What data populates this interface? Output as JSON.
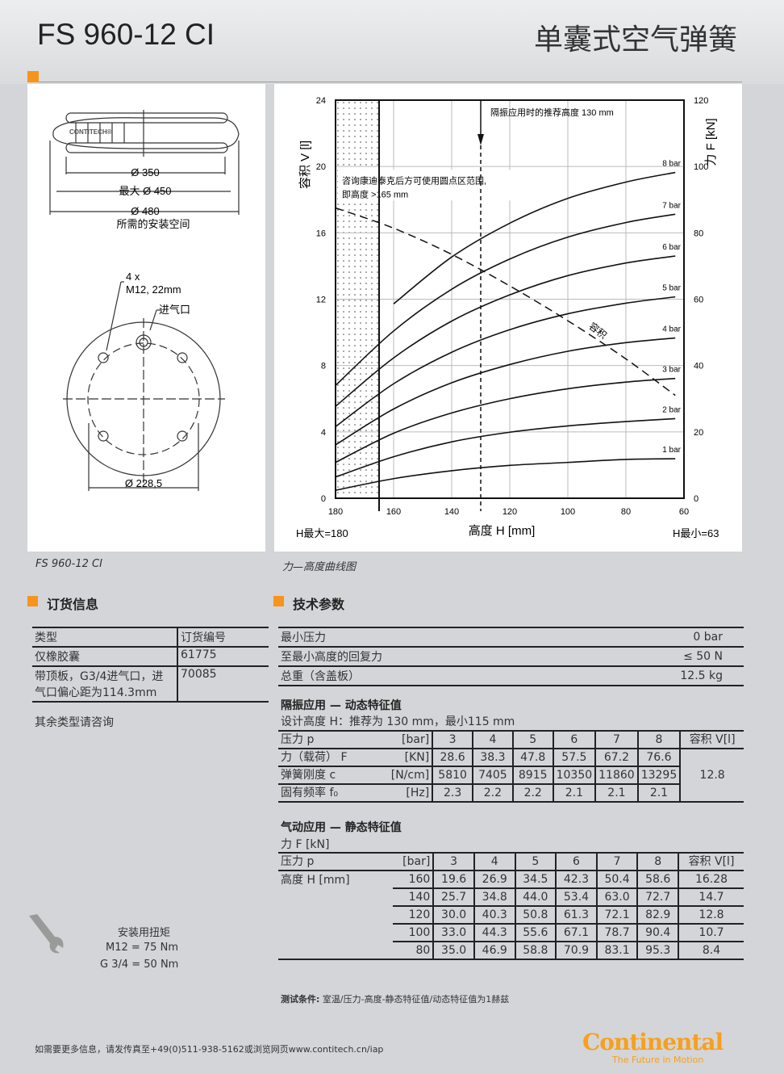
{
  "header": {
    "model": "FS 960-12 CI",
    "product_type": "单囊式空气弹簧"
  },
  "drawing": {
    "d350": "Ø 350",
    "d450": "最大  Ø 450",
    "d480": "Ø 480",
    "install_space": "所需的安装空间",
    "bolts": "4 x",
    "bolt_spec": "M12, 22mm",
    "air_inlet": "进气口",
    "d228": "Ø 228,5",
    "logo_text": "CONTITECH"
  },
  "captions": {
    "drawing": "FS 960-12 CI",
    "chart": "力—高度曲线图"
  },
  "chart_data": {
    "type": "line",
    "xlabel": "高度 H [mm]",
    "ylabel_left": "容积  V [l]",
    "ylabel_right": "力  F [kN]",
    "xlim": [
      180,
      60
    ],
    "ylim_left": [
      0,
      24
    ],
    "ylim_right": [
      0,
      120
    ],
    "x_ticks": [
      180,
      160,
      140,
      120,
      100,
      80,
      60
    ],
    "y_left_ticks": [
      0,
      4,
      8,
      12,
      16,
      20,
      24
    ],
    "y_right_ticks": [
      0,
      20,
      40,
      60,
      80,
      100,
      120
    ],
    "grid": true,
    "h_max_label": "H最大=180",
    "h_min_label": "H最小=63",
    "annotation_recommended": "隔振应用时的推荐高度  130 mm",
    "annotation_dotted_1": "咨询康迪泰克后方可使用圆点区范围,",
    "annotation_dotted_2": "即高度  >165 mm",
    "dotted_region": [
      180,
      165
    ],
    "recommended_height": 130,
    "volume_label": "容积",
    "x": [
      180,
      160,
      140,
      120,
      100,
      80,
      63
    ],
    "series": [
      {
        "name": "8 bar",
        "values": [
          null,
          58.6,
          72.7,
          82.9,
          90.4,
          95.3,
          98.2
        ]
      },
      {
        "name": "7 bar",
        "values": [
          34,
          50.4,
          63.0,
          72.1,
          78.7,
          83.1,
          85.6
        ]
      },
      {
        "name": "6 bar",
        "values": [
          27.7,
          42.3,
          53.4,
          61.3,
          67.1,
          70.9,
          73
        ]
      },
      {
        "name": "5 bar",
        "values": [
          21.6,
          34.5,
          44.0,
          50.8,
          55.6,
          58.8,
          60.7
        ]
      },
      {
        "name": "4 bar",
        "values": [
          16.1,
          26.9,
          34.8,
          40.3,
          44.3,
          46.9,
          48.3
        ]
      },
      {
        "name": "3 bar",
        "values": [
          10.8,
          19.6,
          25.7,
          30.0,
          33.0,
          35.0,
          36.1
        ]
      },
      {
        "name": "2 bar",
        "values": [
          6.4,
          12.5,
          17,
          19.9,
          21.8,
          23.1,
          24
        ]
      },
      {
        "name": "1 bar",
        "values": [
          2.4,
          5.9,
          8.3,
          9.9,
          10.8,
          11.7,
          11.9
        ]
      }
    ],
    "volume_series": {
      "name": "容积",
      "axis": "left",
      "values": [
        17.5,
        16.28,
        14.7,
        12.8,
        10.7,
        8.4,
        6.2
      ]
    }
  },
  "order": {
    "title": "订货信息",
    "headers": [
      "类型",
      "订货编号"
    ],
    "rows": [
      [
        "仅橡胶囊",
        "61775"
      ],
      [
        "带顶板，G3/4进气口，进气口偏心距为114.3mm",
        "70085"
      ]
    ],
    "note": "其余类型请咨询"
  },
  "tech": {
    "title": "技术参数",
    "rows": [
      [
        "最小压力",
        "0 bar"
      ],
      [
        "至最小高度的回复力",
        "≤ 50 N"
      ],
      [
        "总重（含盖板）",
        "12.5 kg"
      ]
    ]
  },
  "dynamic": {
    "title": "隔振应用 — 动态特征值",
    "subtitle": "设计高度 H：推荐为 130 mm，最小115 mm",
    "header": [
      "压力 p",
      "[bar]",
      "3",
      "4",
      "5",
      "6",
      "7",
      "8",
      "容积 V[l]"
    ],
    "rows": [
      [
        "力（载荷） F",
        "[KN]",
        "28.6",
        "38.3",
        "47.8",
        "57.5",
        "67.2",
        "76.6"
      ],
      [
        "弹簧刚度 c",
        "[N/cm]",
        "5810",
        "7405",
        "8915",
        "10350",
        "11860",
        "13295"
      ],
      [
        "固有频率  f₀",
        "[Hz]",
        "2.3",
        "2.2",
        "2.2",
        "2.1",
        "2.1",
        "2.1"
      ]
    ],
    "volume": "12.8"
  },
  "static": {
    "title": "气动应用 — 静态特征值",
    "subtitle": "力 F [kN]",
    "header": [
      "压力 p",
      "[bar]",
      "3",
      "4",
      "5",
      "6",
      "7",
      "8",
      "容积 V[l]"
    ],
    "row_label": "高度 H [mm]",
    "rows": [
      [
        "160",
        "19.6",
        "26.9",
        "34.5",
        "42.3",
        "50.4",
        "58.6",
        "16.28"
      ],
      [
        "140",
        "25.7",
        "34.8",
        "44.0",
        "53.4",
        "63.0",
        "72.7",
        "14.7"
      ],
      [
        "120",
        "30.0",
        "40.3",
        "50.8",
        "61.3",
        "72.1",
        "82.9",
        "12.8"
      ],
      [
        "100",
        "33.0",
        "44.3",
        "55.6",
        "67.1",
        "78.7",
        "90.4",
        "10.7"
      ],
      [
        "80",
        "35.0",
        "46.9",
        "58.8",
        "70.9",
        "83.1",
        "95.3",
        "8.4"
      ]
    ]
  },
  "torque": {
    "title": "安装用扭矩",
    "m12": "M12 = 75 Nm",
    "g34": "G 3/4 = 50 Nm"
  },
  "test_conditions": {
    "label": "测试条件:",
    "text": " 室温/压力-高度-静态特征值/动态特征值为1赫兹"
  },
  "footer": {
    "contact": "如需要更多信息，请发传真至+49(0)511-938-5162或浏览网页www.contitech.cn/iap",
    "brand": "Continental",
    "slogan": "The Future in Motion",
    "brand_color": "#f7a01d"
  }
}
